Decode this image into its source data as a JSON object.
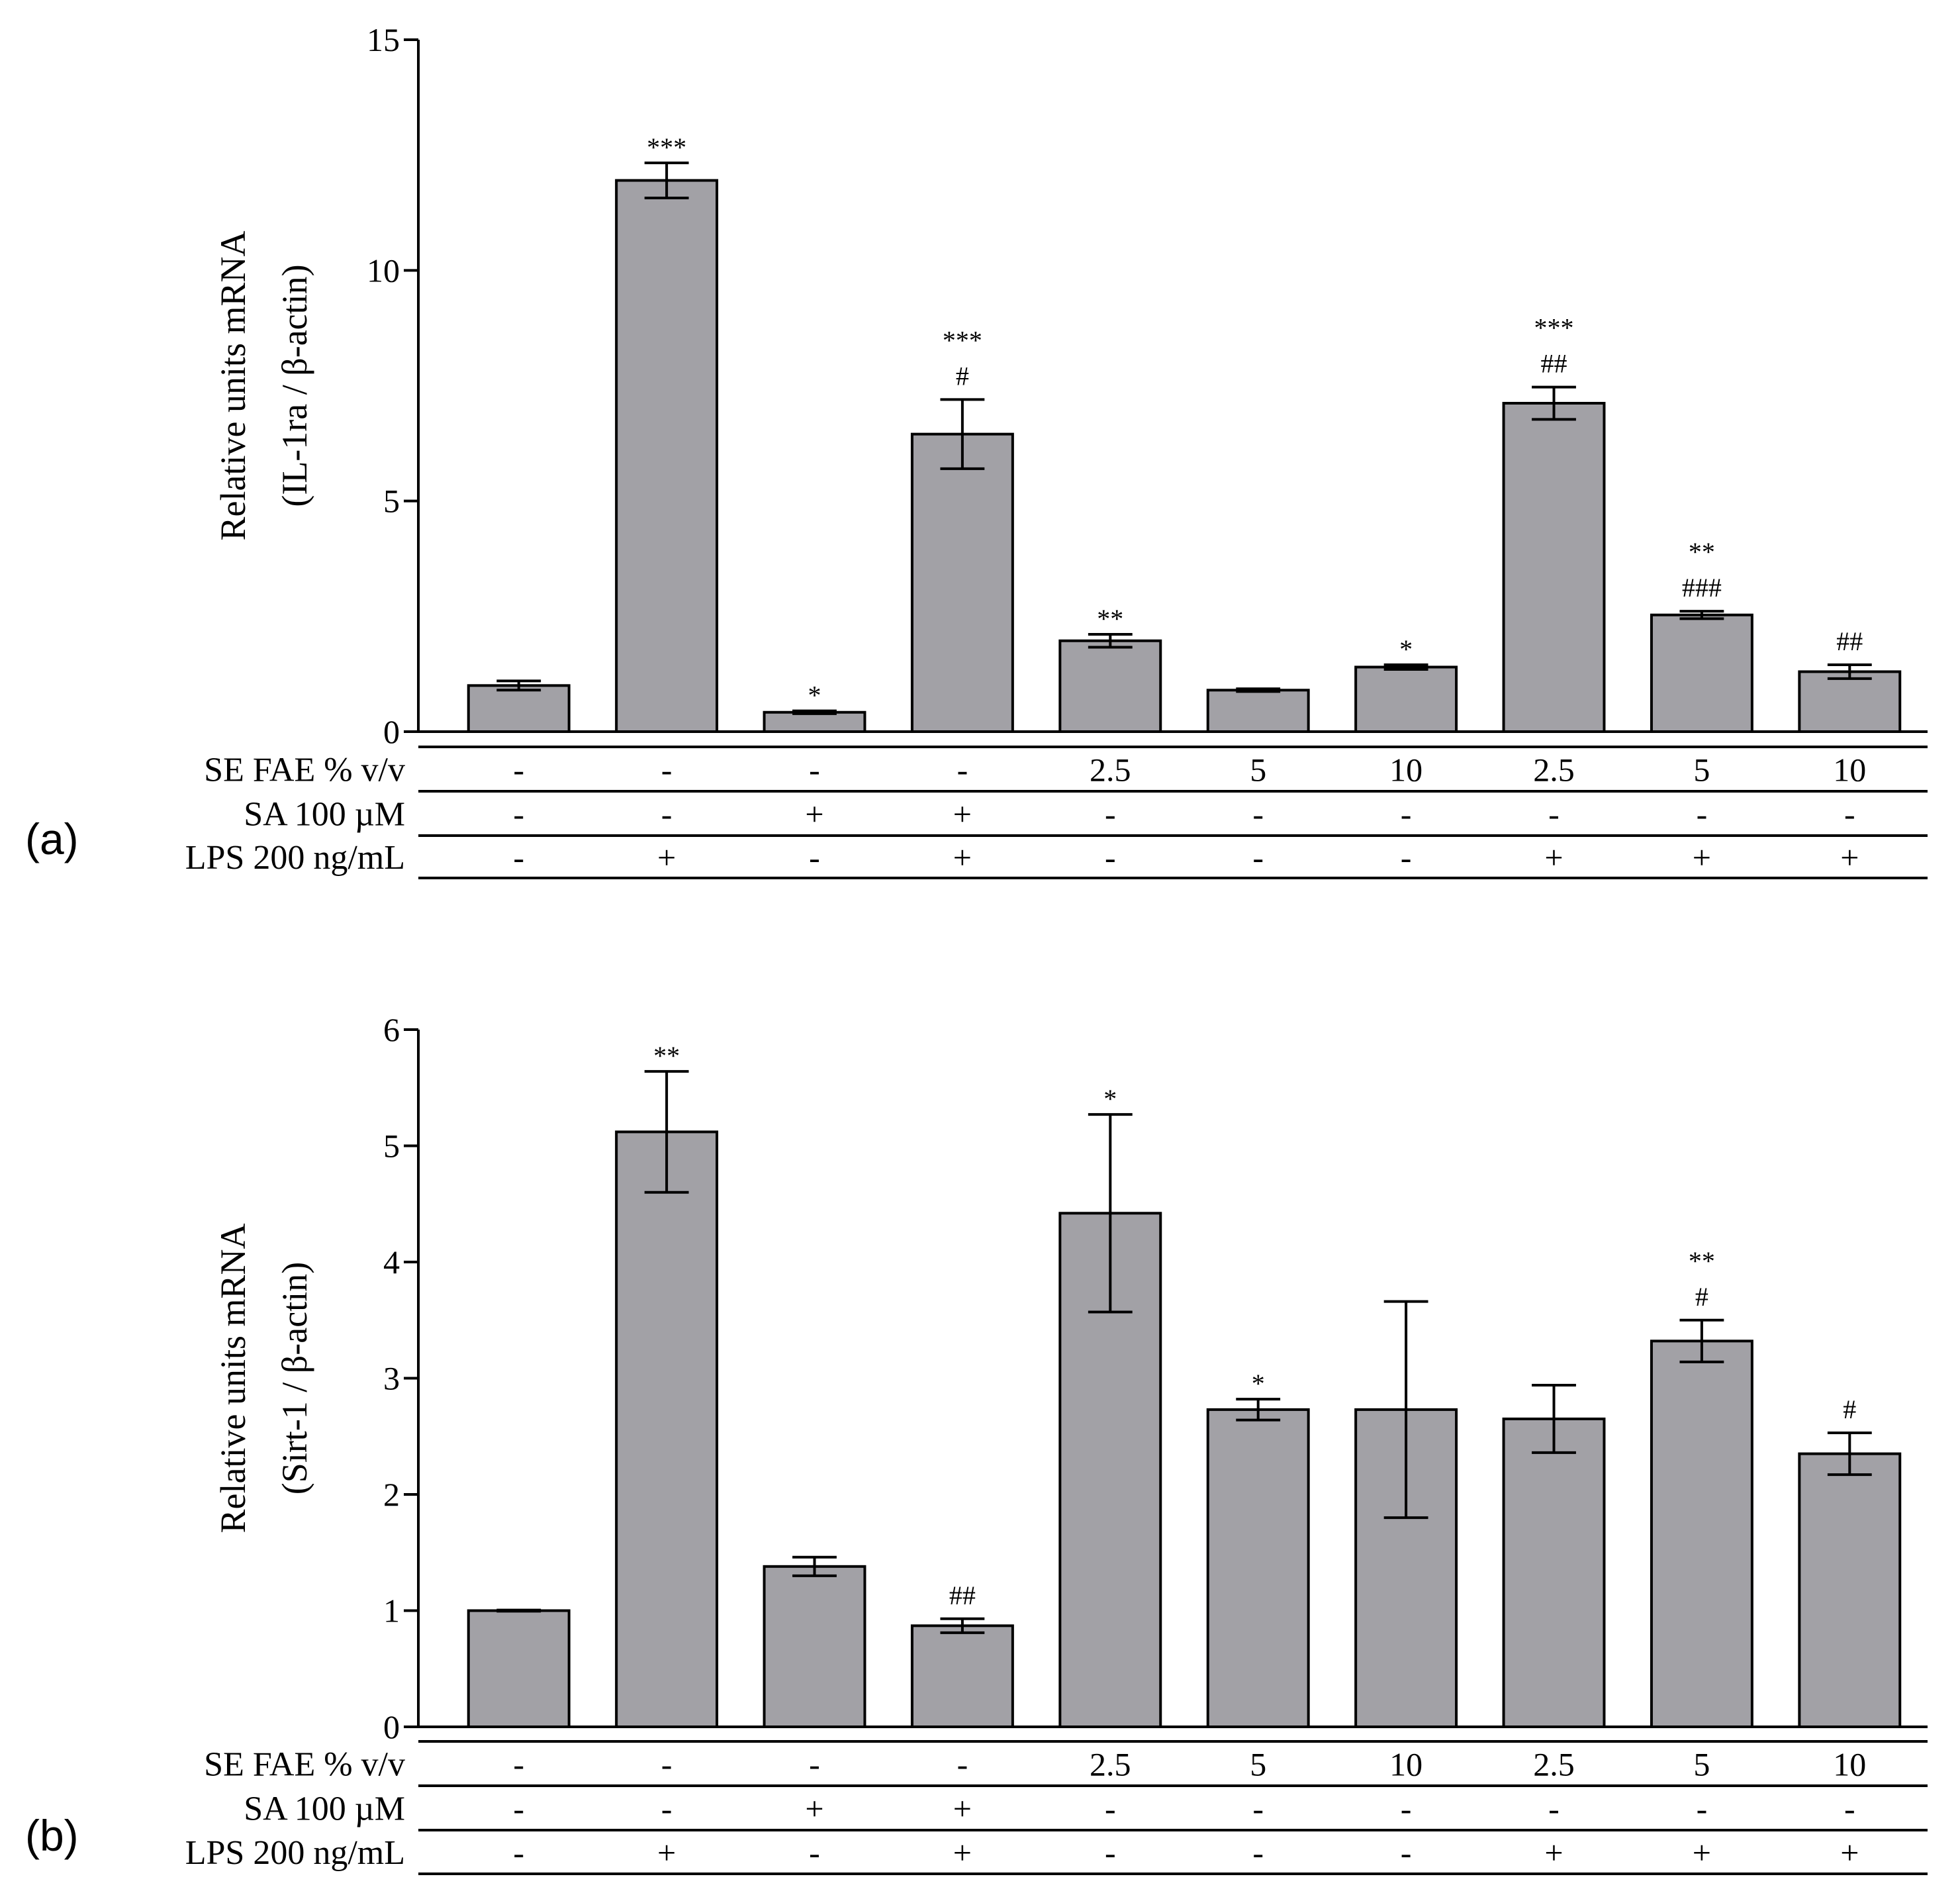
{
  "figure": {
    "colors": {
      "bar_fill": "#a2a1a6",
      "stroke": "#000000",
      "background": "#ffffff"
    }
  },
  "chart_data": [
    {
      "type": "bar",
      "panel_label": "(a)",
      "ylabel_line1": "Relative units mRNA",
      "ylabel_line2": "(IL-1ra / β-actin)",
      "ylim": [
        0,
        15
      ],
      "yticks": [
        0,
        5,
        10,
        15
      ],
      "values": [
        1.0,
        11.95,
        0.42,
        6.45,
        1.97,
        0.9,
        1.4,
        7.12,
        2.53,
        1.3
      ],
      "err": [
        0.1,
        0.38,
        0.03,
        0.75,
        0.14,
        0.03,
        0.05,
        0.35,
        0.08,
        0.15
      ],
      "annotations": [
        [],
        [
          "***"
        ],
        [
          "*"
        ],
        [
          "***",
          "#"
        ],
        [
          "**"
        ],
        [],
        [
          "*"
        ],
        [
          "***",
          "##"
        ],
        [
          "**",
          "###"
        ],
        [
          "##"
        ]
      ],
      "table": {
        "row_labels": [
          "SE FAE % v/v",
          "SA 100 µM",
          "LPS 200 ng/mL"
        ],
        "rows": [
          [
            "-",
            "-",
            "-",
            "-",
            "2.5",
            "5",
            "10",
            "2.5",
            "5",
            "10"
          ],
          [
            "-",
            "-",
            "+",
            "+",
            "-",
            "-",
            "-",
            "-",
            "-",
            "-"
          ],
          [
            "-",
            "+",
            "-",
            "+",
            "-",
            "-",
            "-",
            "+",
            "+",
            "+"
          ]
        ]
      }
    },
    {
      "type": "bar",
      "panel_label": "(b)",
      "ylabel_line1": "Relative units mRNA",
      "ylabel_line2": "(Sirt-1 / β-actin)",
      "ylim": [
        0,
        6
      ],
      "yticks": [
        0,
        1,
        2,
        3,
        4,
        5,
        6
      ],
      "values": [
        1.0,
        5.12,
        1.38,
        0.87,
        4.42,
        2.73,
        2.73,
        2.65,
        3.32,
        2.35
      ],
      "err": [
        0.005,
        0.52,
        0.08,
        0.06,
        0.85,
        0.09,
        0.93,
        0.29,
        0.18,
        0.18
      ],
      "annotations": [
        [],
        [
          "**"
        ],
        [],
        [
          "##"
        ],
        [
          "*"
        ],
        [
          "*"
        ],
        [],
        [],
        [
          "**",
          "#"
        ],
        [
          "#"
        ]
      ],
      "table": {
        "row_labels": [
          "SE FAE % v/v",
          "SA 100 µM",
          "LPS 200 ng/mL"
        ],
        "rows": [
          [
            "-",
            "-",
            "-",
            "-",
            "2.5",
            "5",
            "10",
            "2.5",
            "5",
            "10"
          ],
          [
            "-",
            "-",
            "+",
            "+",
            "-",
            "-",
            "-",
            "-",
            "-",
            "-"
          ],
          [
            "-",
            "+",
            "-",
            "+",
            "-",
            "-",
            "-",
            "+",
            "+",
            "+"
          ]
        ]
      }
    }
  ]
}
